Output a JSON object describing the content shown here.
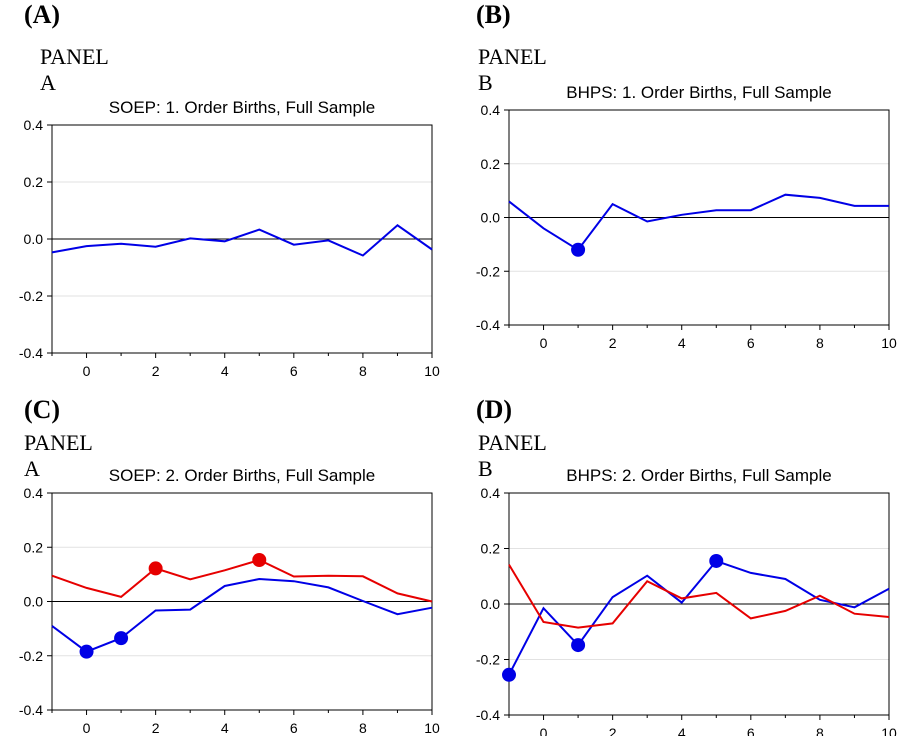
{
  "charts": [
    {
      "letter": "(A)",
      "panel_label": "PANEL A",
      "chart_data": {
        "type": "line",
        "title": "SOEP: 1. Order Births, Full Sample",
        "xlabel": "",
        "ylabel": "",
        "xlim": [
          -1,
          10
        ],
        "ylim": [
          -0.4,
          0.4
        ],
        "x_ticks": [
          0,
          2,
          4,
          6,
          8,
          10
        ],
        "y_ticks": [
          "-0.4",
          "-0.2",
          "0.0",
          "0.2",
          "0.4"
        ],
        "grid": true,
        "zero_line": true,
        "x": [
          -1,
          0,
          1,
          2,
          3,
          4,
          5,
          6,
          7,
          8,
          9,
          10
        ],
        "series": [
          {
            "color": "#0000e6",
            "values": [
              -0.047,
              -0.025,
              -0.017,
              -0.027,
              0.002,
              -0.008,
              0.033,
              -0.02,
              -0.005,
              -0.058,
              0.048,
              -0.037
            ],
            "markers": []
          }
        ]
      }
    },
    {
      "letter": "(B)",
      "panel_label": "PANEL B",
      "chart_data": {
        "type": "line",
        "title": "BHPS: 1. Order Births, Full Sample",
        "xlabel": "",
        "ylabel": "",
        "xlim": [
          -1,
          10
        ],
        "ylim": [
          -0.4,
          0.4
        ],
        "x_ticks": [
          0,
          2,
          4,
          6,
          8,
          10
        ],
        "y_ticks": [
          "-0.4",
          "-0.2",
          "0.0",
          "0.2",
          "0.4"
        ],
        "grid": true,
        "zero_line": true,
        "x": [
          -1,
          0,
          1,
          2,
          3,
          4,
          5,
          6,
          7,
          8,
          9,
          10
        ],
        "series": [
          {
            "color": "#0000e6",
            "values": [
              0.06,
              -0.04,
              -0.12,
              0.05,
              -0.015,
              0.01,
              0.027,
              0.027,
              0.085,
              0.073,
              0.043,
              0.043
            ],
            "markers": [
              1
            ]
          }
        ]
      }
    },
    {
      "letter": "(C)",
      "panel_label": "PANEL A",
      "chart_data": {
        "type": "line",
        "title": "SOEP: 2. Order Births, Full Sample",
        "xlabel": "",
        "ylabel": "",
        "xlim": [
          -1,
          10
        ],
        "ylim": [
          -0.4,
          0.4
        ],
        "x_ticks": [
          0,
          2,
          4,
          6,
          8,
          10
        ],
        "y_ticks": [
          "-0.4",
          "-0.2",
          "0.0",
          "0.2",
          "0.4"
        ],
        "grid": true,
        "zero_line": true,
        "x": [
          -1,
          0,
          1,
          2,
          3,
          4,
          5,
          6,
          7,
          8,
          9,
          10
        ],
        "series": [
          {
            "color": "#0000e6",
            "values": [
              -0.09,
              -0.185,
              -0.135,
              -0.033,
              -0.03,
              0.057,
              0.083,
              0.075,
              0.052,
              0.002,
              -0.047,
              -0.023
            ],
            "markers": [
              0,
              1
            ]
          },
          {
            "color": "#e60000",
            "values": [
              0.095,
              0.05,
              0.017,
              0.122,
              0.082,
              0.115,
              0.153,
              0.092,
              0.095,
              0.093,
              0.03,
              0.0
            ],
            "markers": [
              2,
              5
            ]
          }
        ]
      }
    },
    {
      "letter": "(D)",
      "panel_label": "PANEL B",
      "chart_data": {
        "type": "line",
        "title": "BHPS: 2. Order Births, Full Sample",
        "xlabel": "",
        "ylabel": "",
        "xlim": [
          -1,
          10
        ],
        "ylim": [
          -0.4,
          0.4
        ],
        "x_ticks": [
          0,
          2,
          4,
          6,
          8,
          10
        ],
        "y_ticks": [
          "-0.4",
          "-0.2",
          "0.0",
          "0.2",
          "0.4"
        ],
        "grid": true,
        "zero_line": true,
        "x": [
          -1,
          0,
          1,
          2,
          3,
          4,
          5,
          6,
          7,
          8,
          9,
          10
        ],
        "series": [
          {
            "color": "#0000e6",
            "values": [
              -0.255,
              -0.015,
              -0.148,
              0.025,
              0.102,
              0.005,
              0.155,
              0.112,
              0.09,
              0.015,
              -0.012,
              0.055
            ],
            "markers": [
              -1,
              1,
              5
            ]
          },
          {
            "color": "#e60000",
            "values": [
              0.142,
              -0.065,
              -0.085,
              -0.07,
              0.082,
              0.02,
              0.04,
              -0.052,
              -0.025,
              0.03,
              -0.035,
              -0.047
            ],
            "markers": []
          }
        ]
      }
    }
  ]
}
